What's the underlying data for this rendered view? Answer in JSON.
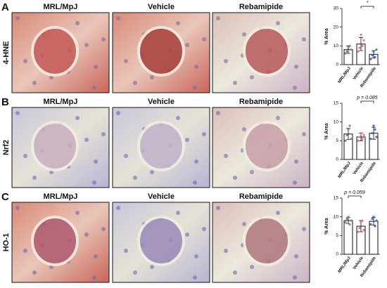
{
  "panels": [
    {
      "label": "A",
      "stain": "4-HNE",
      "image_titles": [
        "MRL/MpJ",
        "Vehicle",
        "Rebamipide"
      ]
    },
    {
      "label": "B",
      "stain": "Nrf2",
      "image_titles": [
        "MRL/MpJ",
        "Vehicle",
        "Rebamipide"
      ]
    },
    {
      "label": "C",
      "stain": "HO-1",
      "image_titles": [
        "MRL/MpJ",
        "Vehicle",
        "Rebamipide"
      ]
    }
  ],
  "chart_data": [
    {
      "type": "bar",
      "y_label": "% Area",
      "categories": [
        "MRL/MpJ",
        "Vehicle",
        "Rebamipide"
      ],
      "values": [
        8,
        11,
        5.5
      ],
      "errors": [
        2,
        3.5,
        2
      ],
      "points": [
        [
          6,
          7,
          9,
          10,
          8
        ],
        [
          7,
          9,
          16,
          10,
          13
        ],
        [
          3,
          5,
          7,
          4,
          8
        ]
      ],
      "colors": [
        "#888888",
        "#e8788a",
        "#4a6fd8"
      ],
      "ylim": [
        0,
        30
      ],
      "yticks": [
        0,
        10,
        20,
        30
      ],
      "annotation": "*",
      "annotation_span": [
        1,
        2
      ]
    },
    {
      "type": "bar",
      "y_label": "% Area",
      "categories": [
        "MRL/MpJ",
        "Vehicle",
        "Rebamipide"
      ],
      "values": [
        6.8,
        6,
        7
      ],
      "errors": [
        1.5,
        1,
        1.6
      ],
      "points": [
        [
          5,
          6.5,
          8,
          9,
          5.5
        ],
        [
          5,
          6,
          7,
          5.5,
          6.5
        ],
        [
          5.5,
          7,
          9,
          8,
          6
        ]
      ],
      "colors": [
        "#888888",
        "#e8788a",
        "#4a6fd8"
      ],
      "ylim": [
        0,
        15
      ],
      "yticks": [
        0,
        5,
        10,
        15
      ],
      "annotation": "p = 0.085",
      "annotation_span": [
        1,
        2
      ]
    },
    {
      "type": "bar",
      "y_label": "% Area",
      "categories": [
        "MRL/MpJ",
        "Vehicle",
        "Rebamipide"
      ],
      "values": [
        9,
        7.5,
        8.8
      ],
      "errors": [
        0.8,
        1.5,
        1
      ],
      "points": [
        [
          8.5,
          9.5,
          10,
          8,
          9
        ],
        [
          6,
          7,
          8.5,
          9,
          6.5
        ],
        [
          8,
          9.5,
          10,
          7.5,
          9
        ]
      ],
      "colors": [
        "#888888",
        "#e8788a",
        "#4a6fd8"
      ],
      "ylim": [
        0,
        15
      ],
      "yticks": [
        0,
        5,
        10,
        15
      ],
      "annotation": "p = 0.059",
      "annotation_span": [
        0,
        1
      ]
    }
  ]
}
